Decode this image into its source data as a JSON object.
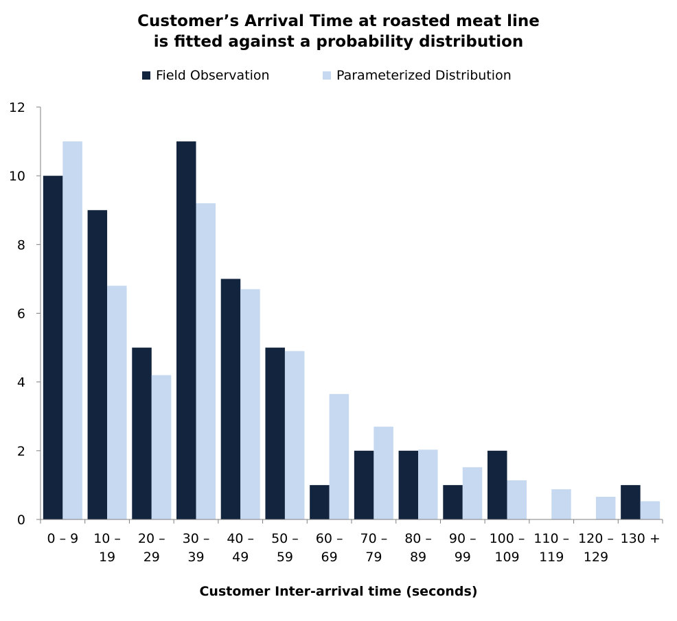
{
  "chart_data": {
    "type": "bar",
    "title": [
      "Customer’s Arrival Time at roasted meat line",
      "is fitted against a probability distribution"
    ],
    "xlabel": "Customer Inter-arrival time (seconds)",
    "ylabel": "",
    "ylim": [
      0,
      12
    ],
    "yticks": [
      0,
      2,
      4,
      6,
      8,
      10,
      12
    ],
    "grid": false,
    "legend_position": "top",
    "categories": [
      [
        "0 – 9"
      ],
      [
        "10 –",
        "19"
      ],
      [
        "20 –",
        "29"
      ],
      [
        "30 –",
        "39"
      ],
      [
        "40 –",
        "49"
      ],
      [
        "50 –",
        "59"
      ],
      [
        "60 –",
        "69"
      ],
      [
        "70 –",
        "79"
      ],
      [
        "80 –",
        "89"
      ],
      [
        "90 –",
        "99"
      ],
      [
        "100 –",
        "109"
      ],
      [
        "110 –",
        "119"
      ],
      [
        "120 –",
        "129"
      ],
      [
        "130 +"
      ]
    ],
    "series": [
      {
        "name": "Field Observation",
        "color": "#13243f",
        "values": [
          10,
          9,
          5,
          11,
          7,
          5,
          1,
          2,
          2,
          1,
          2,
          0,
          0,
          1
        ]
      },
      {
        "name": "Parameterized Distribution",
        "color": "#c6d9f0",
        "values": [
          11,
          6.8,
          4.2,
          9.2,
          6.7,
          4.9,
          3.65,
          2.7,
          2.03,
          1.52,
          1.14,
          0.88,
          0.66,
          0.53
        ]
      }
    ]
  }
}
